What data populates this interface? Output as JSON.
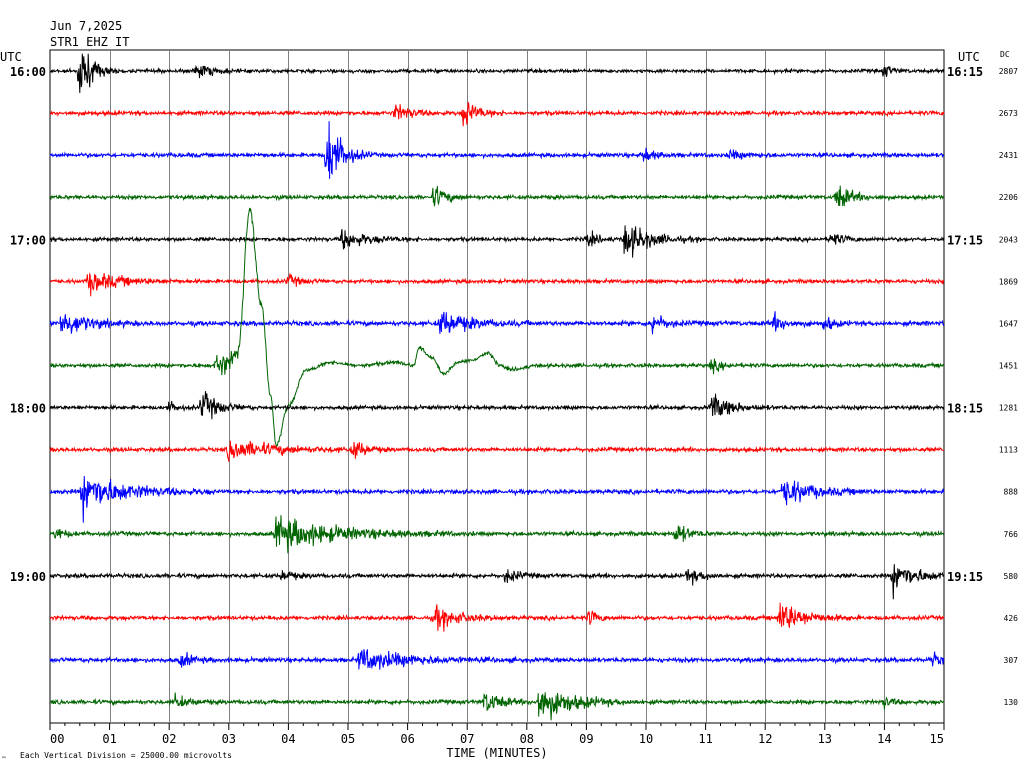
{
  "header": {
    "date": "Jun 7,2025",
    "station": "STR1 EHZ IT",
    "left_tz": "UTC",
    "right_tz": "UTC",
    "dc_label": "DC"
  },
  "footer": {
    "xlabel": "TIME (MINUTES)",
    "scale_note": "Each Vertical Division = 25000.00 microvolts",
    "corner_mark": "™"
  },
  "chart_data": {
    "type": "line",
    "title": "STR1 EHZ IT",
    "xlabel": "TIME (MINUTES)",
    "ylabel": "",
    "xlim": [
      0,
      15
    ],
    "x_ticks": [
      "00",
      "01",
      "02",
      "03",
      "04",
      "05",
      "06",
      "07",
      "08",
      "09",
      "10",
      "11",
      "12",
      "13",
      "14",
      "15"
    ],
    "grid": true,
    "trace_colors": [
      "#000000",
      "#ff0000",
      "#0000ff",
      "#006400"
    ],
    "left_hour_labels": [
      {
        "row": 0,
        "label": "16:00"
      },
      {
        "row": 4,
        "label": "17:00"
      },
      {
        "row": 8,
        "label": "18:00"
      },
      {
        "row": 12,
        "label": "19:00"
      }
    ],
    "right_time_labels": [
      {
        "row": 0,
        "label": "16:15"
      },
      {
        "row": 4,
        "label": "17:15"
      },
      {
        "row": 8,
        "label": "18:15"
      },
      {
        "row": 12,
        "label": "19:15"
      }
    ],
    "dc_offsets": [
      "2807",
      "2673",
      "2431",
      "2206",
      "2043",
      "1869",
      "1647",
      "1451",
      "1281",
      "1113",
      "888",
      "766",
      "580",
      "426",
      "307",
      "130"
    ],
    "rows": [
      {
        "noise": 1.2,
        "events": [
          {
            "t": 0.5,
            "amp": 22,
            "dur": 0.3
          },
          {
            "t": 2.45,
            "amp": 5,
            "dur": 0.4
          },
          {
            "t": 14.0,
            "amp": 5,
            "dur": 0.2
          }
        ]
      },
      {
        "noise": 1.4,
        "events": [
          {
            "t": 5.8,
            "amp": 6,
            "dur": 0.4
          },
          {
            "t": 6.95,
            "amp": 11,
            "dur": 0.3
          }
        ]
      },
      {
        "noise": 1.4,
        "events": [
          {
            "t": 4.65,
            "amp": 28,
            "dur": 0.35
          },
          {
            "t": 9.95,
            "amp": 5,
            "dur": 0.3
          },
          {
            "t": 11.4,
            "amp": 3,
            "dur": 0.4
          }
        ]
      },
      {
        "noise": 1.3,
        "events": [
          {
            "t": 6.45,
            "amp": 8,
            "dur": 0.3
          },
          {
            "t": 13.2,
            "amp": 9,
            "dur": 0.4
          }
        ]
      },
      {
        "noise": 1.3,
        "events": [
          {
            "t": 4.9,
            "amp": 7,
            "dur": 0.6
          },
          {
            "t": 9.0,
            "amp": 5,
            "dur": 0.3
          },
          {
            "t": 9.65,
            "amp": 13,
            "dur": 0.6
          },
          {
            "t": 13.1,
            "amp": 5,
            "dur": 0.3
          }
        ]
      },
      {
        "noise": 1.3,
        "events": [
          {
            "t": 0.65,
            "amp": 8,
            "dur": 0.7
          },
          {
            "t": 4.0,
            "amp": 4,
            "dur": 0.3
          }
        ]
      },
      {
        "noise": 1.6,
        "events": [
          {
            "t": 0.2,
            "amp": 10,
            "dur": 0.6
          },
          {
            "t": 6.55,
            "amp": 9,
            "dur": 0.7
          },
          {
            "t": 10.1,
            "amp": 8,
            "dur": 0.3
          },
          {
            "t": 12.15,
            "amp": 6,
            "dur": 0.3
          },
          {
            "t": 13.0,
            "amp": 6,
            "dur": 0.2
          }
        ]
      },
      {
        "noise": 1.3,
        "events": [
          {
            "t": 2.8,
            "amp": 9,
            "dur": 0.6
          },
          {
            "t": 11.1,
            "amp": 4,
            "dur": 0.3
          }
        ],
        "swing": [
          [
            0,
            0
          ],
          [
            2.95,
            0
          ],
          [
            3.15,
            -12
          ],
          [
            3.35,
            -155
          ],
          [
            3.55,
            -60
          ],
          [
            3.7,
            30
          ],
          [
            3.8,
            80
          ],
          [
            4.0,
            40
          ],
          [
            4.3,
            5
          ],
          [
            4.7,
            -3
          ],
          [
            5.2,
            0
          ],
          [
            5.8,
            -3
          ],
          [
            6.1,
            0
          ],
          [
            6.2,
            -18
          ],
          [
            6.4,
            -8
          ],
          [
            6.6,
            8
          ],
          [
            6.85,
            -3
          ],
          [
            7.05,
            -5
          ],
          [
            7.35,
            -12
          ],
          [
            7.55,
            0
          ],
          [
            7.75,
            4
          ],
          [
            8.2,
            0
          ],
          [
            15,
            0
          ]
        ]
      },
      {
        "noise": 1.3,
        "events": [
          {
            "t": 2.55,
            "amp": 11,
            "dur": 0.4
          },
          {
            "t": 11.1,
            "amp": 9,
            "dur": 0.5
          },
          {
            "t": 2.0,
            "amp": 4,
            "dur": 0.2
          }
        ]
      },
      {
        "noise": 1.4,
        "events": [
          {
            "t": 3.0,
            "amp": 7,
            "dur": 1.2
          },
          {
            "t": 5.1,
            "amp": 7,
            "dur": 0.3
          }
        ]
      },
      {
        "noise": 1.5,
        "events": [
          {
            "t": 0.55,
            "amp": 15,
            "dur": 1.0
          },
          {
            "t": 12.3,
            "amp": 10,
            "dur": 0.7
          }
        ]
      },
      {
        "noise": 1.4,
        "events": [
          {
            "t": 3.8,
            "amp": 12,
            "dur": 1.5
          },
          {
            "t": 10.5,
            "amp": 8,
            "dur": 0.3
          },
          {
            "t": 0.1,
            "amp": 5,
            "dur": 0.2
          }
        ]
      },
      {
        "noise": 1.4,
        "events": [
          {
            "t": 3.9,
            "amp": 4,
            "dur": 0.3
          },
          {
            "t": 7.65,
            "amp": 5,
            "dur": 0.3
          },
          {
            "t": 10.7,
            "amp": 5,
            "dur": 0.4
          },
          {
            "t": 14.15,
            "amp": 11,
            "dur": 0.6
          }
        ]
      },
      {
        "noise": 1.4,
        "events": [
          {
            "t": 6.45,
            "amp": 8,
            "dur": 0.6
          },
          {
            "t": 9.05,
            "amp": 6,
            "dur": 0.2
          },
          {
            "t": 12.25,
            "amp": 12,
            "dur": 0.6
          }
        ]
      },
      {
        "noise": 1.5,
        "events": [
          {
            "t": 2.2,
            "amp": 5,
            "dur": 0.3
          },
          {
            "t": 5.2,
            "amp": 8,
            "dur": 1.2
          },
          {
            "t": 14.8,
            "amp": 5,
            "dur": 0.2
          }
        ]
      },
      {
        "noise": 1.4,
        "events": [
          {
            "t": 2.1,
            "amp": 5,
            "dur": 0.3
          },
          {
            "t": 7.3,
            "amp": 8,
            "dur": 0.4
          },
          {
            "t": 8.2,
            "amp": 14,
            "dur": 0.8
          },
          {
            "t": 14.0,
            "amp": 4,
            "dur": 0.2
          }
        ]
      }
    ]
  }
}
